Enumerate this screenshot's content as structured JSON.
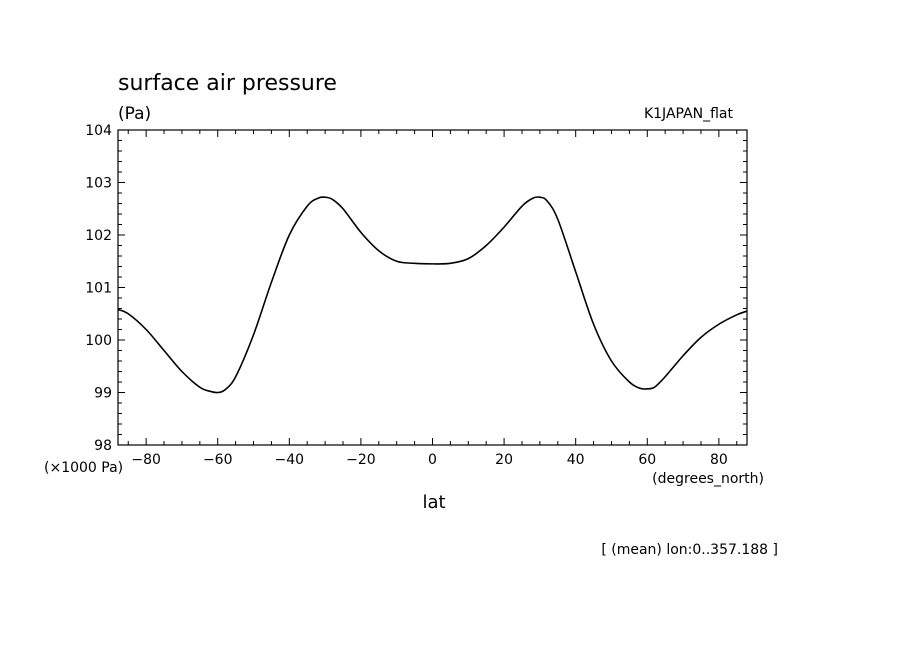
{
  "chart_data": {
    "type": "line",
    "title": "surface air pressure",
    "units_label": "(Pa)",
    "dataset_label": "K1JAPAN_flat",
    "xlabel": "lat",
    "x_units_label": "(degrees_north)",
    "y_scale_label": "(×1000 Pa)",
    "footer": "[ (mean) lon:0..357.188 ]",
    "xlim": [
      -87.86,
      87.86
    ],
    "ylim": [
      98,
      104
    ],
    "x_ticks": [
      -80,
      -60,
      -40,
      -20,
      0,
      20,
      40,
      60,
      80
    ],
    "x_tick_labels": [
      "−80",
      "−60",
      "−40",
      "−20",
      "0",
      "20",
      "40",
      "60",
      "80"
    ],
    "y_ticks": [
      98,
      99,
      100,
      101,
      102,
      103,
      104
    ],
    "y_tick_labels": [
      "98",
      "99",
      "100",
      "101",
      "102",
      "103",
      "104"
    ],
    "grid": false,
    "color": "#000000",
    "series": [
      {
        "x": [
          -87.86,
          -85,
          -80,
          -75,
          -70,
          -65,
          -62,
          -60,
          -58,
          -55,
          -50,
          -45,
          -40,
          -35,
          -32,
          -30,
          -28,
          -25,
          -20,
          -15,
          -10,
          -5,
          0,
          5,
          10,
          15,
          20,
          25,
          28,
          30,
          32,
          35,
          40,
          45,
          50,
          55,
          58,
          60,
          62,
          65,
          70,
          75,
          80,
          85,
          87.86
        ],
        "y": [
          100.58,
          100.5,
          100.2,
          99.8,
          99.4,
          99.1,
          99.02,
          99.0,
          99.05,
          99.3,
          100.1,
          101.1,
          102.0,
          102.55,
          102.7,
          102.72,
          102.68,
          102.5,
          102.05,
          101.7,
          101.5,
          101.46,
          101.45,
          101.46,
          101.55,
          101.8,
          102.15,
          102.55,
          102.7,
          102.72,
          102.65,
          102.3,
          101.3,
          100.3,
          99.6,
          99.2,
          99.08,
          99.07,
          99.1,
          99.3,
          99.7,
          100.05,
          100.3,
          100.48,
          100.55
        ]
      }
    ]
  }
}
